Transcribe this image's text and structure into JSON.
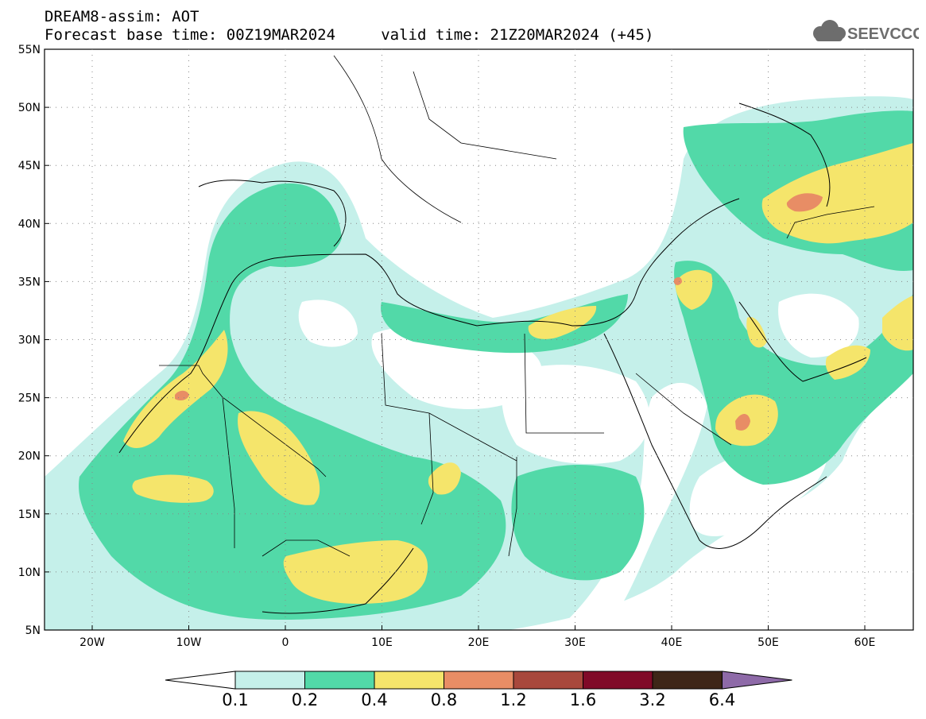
{
  "header": {
    "line1": "DREAM8-assim: AOT",
    "line2": "Forecast base time: 00Z19MAR2024     valid time: 21Z20MAR2024 (+45)"
  },
  "logo": {
    "text": "SEEVCCC",
    "icon": "cloud-icon"
  },
  "axes": {
    "lat_labels": [
      "55N",
      "50N",
      "45N",
      "40N",
      "35N",
      "30N",
      "25N",
      "20N",
      "15N",
      "10N",
      "5N"
    ],
    "lon_labels": [
      "20W",
      "10W",
      "0",
      "10E",
      "20E",
      "30E",
      "40E",
      "50E",
      "60E"
    ]
  },
  "colorbar": {
    "labels": [
      "0.1",
      "0.2",
      "0.4",
      "0.8",
      "1.2",
      "1.6",
      "3.2",
      "6.4"
    ],
    "colors": [
      "#ffffff",
      "#c5f0ea",
      "#52d9a8",
      "#f5e56b",
      "#e88d65",
      "#a8483c",
      "#800a28",
      "#3e2618",
      "#8e6aa8"
    ]
  }
}
